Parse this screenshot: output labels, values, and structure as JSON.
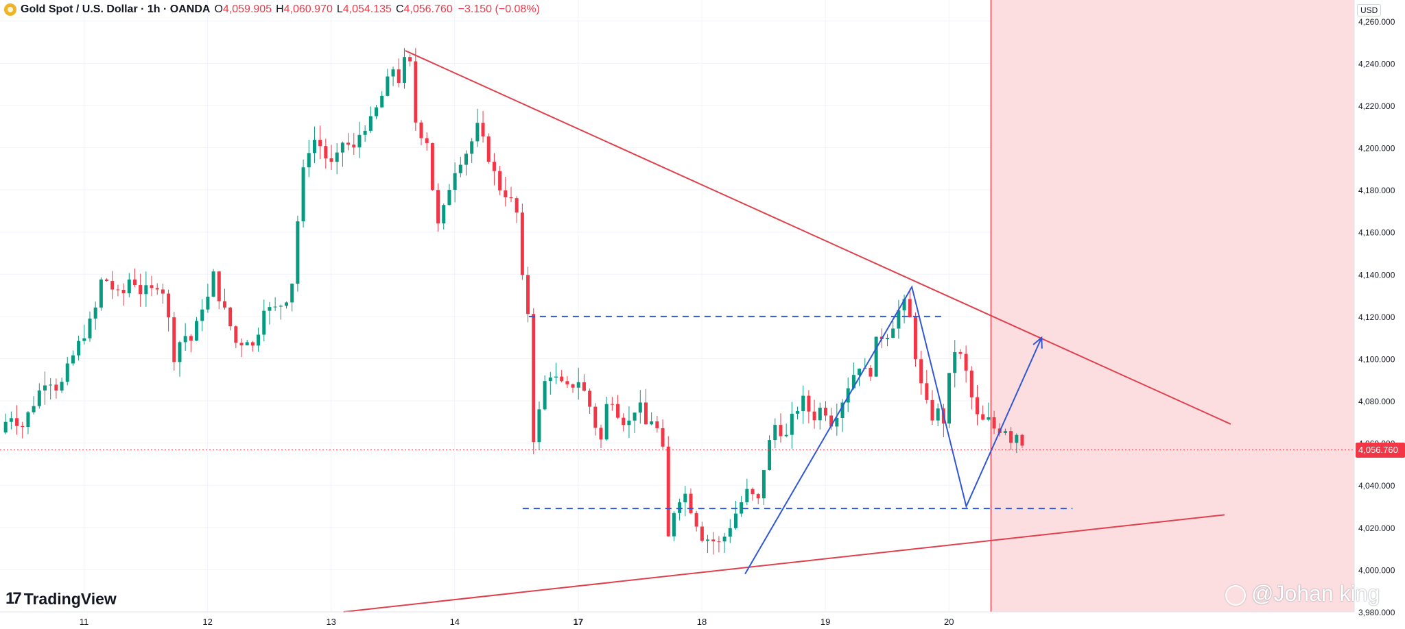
{
  "header": {
    "symbol_title": "Gold Spot / U.S. Dollar · 1h · OANDA",
    "open_label": "O",
    "open_value": "4,059.905",
    "high_label": "H",
    "high_value": "4,060.970",
    "low_label": "L",
    "low_value": "4,054.135",
    "close_label": "C",
    "close_value": "4,056.760",
    "change_value": "−3.150 (−0.08%)"
  },
  "currency_label": "USD",
  "current_price_label": "4,056.760",
  "logo_text": "TradingView",
  "watermark_text": "@Johan king",
  "colors": {
    "up": "#089981",
    "down": "#f23645",
    "trendline": "#e0404c",
    "pattern": "#2f56d6",
    "zone": "#fcdde0",
    "grid": "#f0f3fa"
  },
  "chart_data": {
    "type": "candlestick",
    "instrument": "Gold Spot / U.S. Dollar",
    "timeframe": "1h",
    "y_ticks": [
      "4,260.000",
      "4,240.000",
      "4,220.000",
      "4,200.000",
      "4,180.000",
      "4,160.000",
      "4,140.000",
      "4,120.000",
      "4,100.000",
      "4,080.000",
      "4,060.000",
      "4,040.000",
      "4,020.000",
      "4,000.000",
      "3,980.000"
    ],
    "x_ticks": [
      {
        "label": "11",
        "day": 0,
        "bold": false
      },
      {
        "label": "12",
        "day": 1,
        "bold": false
      },
      {
        "label": "13",
        "day": 2,
        "bold": false
      },
      {
        "label": "14",
        "day": 3,
        "bold": false
      },
      {
        "label": "17",
        "day": 4,
        "bold": true
      },
      {
        "label": "18",
        "day": 5,
        "bold": false
      },
      {
        "label": "19",
        "day": 6,
        "bold": false
      },
      {
        "label": "20",
        "day": 7,
        "bold": false
      }
    ],
    "ylim": [
      3980,
      4270
    ],
    "x_range_days": [
      -0.68,
      10.28
    ],
    "current_price": 4056.76,
    "price_path": [
      [
        -0.68,
        4065
      ],
      [
        -0.6,
        4074
      ],
      [
        -0.5,
        4068
      ],
      [
        -0.4,
        4080
      ],
      [
        -0.3,
        4092
      ],
      [
        -0.2,
        4085
      ],
      [
        -0.1,
        4100
      ],
      [
        0.0,
        4112
      ],
      [
        0.08,
        4120
      ],
      [
        0.15,
        4140
      ],
      [
        0.22,
        4134
      ],
      [
        0.3,
        4128
      ],
      [
        0.38,
        4140
      ],
      [
        0.45,
        4132
      ],
      [
        0.55,
        4132
      ],
      [
        0.62,
        4138
      ],
      [
        0.68,
        4120
      ],
      [
        0.72,
        4100
      ],
      [
        0.8,
        4112
      ],
      [
        0.88,
        4108
      ],
      [
        0.95,
        4125
      ],
      [
        1.0,
        4128
      ],
      [
        1.05,
        4140
      ],
      [
        1.1,
        4128
      ],
      [
        1.18,
        4116
      ],
      [
        1.25,
        4104
      ],
      [
        1.3,
        4112
      ],
      [
        1.38,
        4104
      ],
      [
        1.45,
        4126
      ],
      [
        1.52,
        4122
      ],
      [
        1.58,
        4125
      ],
      [
        1.65,
        4130
      ],
      [
        1.7,
        4140
      ],
      [
        1.74,
        4175
      ],
      [
        1.8,
        4198
      ],
      [
        1.88,
        4205
      ],
      [
        1.95,
        4196
      ],
      [
        2.02,
        4190
      ],
      [
        2.1,
        4204
      ],
      [
        2.18,
        4198
      ],
      [
        2.25,
        4210
      ],
      [
        2.32,
        4212
      ],
      [
        2.38,
        4220
      ],
      [
        2.45,
        4230
      ],
      [
        2.5,
        4238
      ],
      [
        2.55,
        4232
      ],
      [
        2.6,
        4242
      ],
      [
        2.65,
        4238
      ],
      [
        2.7,
        4200
      ],
      [
        2.75,
        4212
      ],
      [
        2.8,
        4195
      ],
      [
        2.85,
        4160
      ],
      [
        2.92,
        4172
      ],
      [
        2.98,
        4188
      ],
      [
        3.05,
        4195
      ],
      [
        3.12,
        4200
      ],
      [
        3.18,
        4210
      ],
      [
        3.22,
        4204
      ],
      [
        3.28,
        4195
      ],
      [
        3.35,
        4182
      ],
      [
        3.42,
        4178
      ],
      [
        3.5,
        4170
      ],
      [
        3.55,
        4135
      ],
      [
        3.6,
        4120
      ],
      [
        3.64,
        4060
      ],
      [
        3.7,
        4080
      ],
      [
        3.75,
        4095
      ],
      [
        3.82,
        4090
      ],
      [
        3.9,
        4085
      ],
      [
        4.0,
        4090
      ],
      [
        4.08,
        4080
      ],
      [
        4.12,
        4072
      ],
      [
        4.18,
        4060
      ],
      [
        4.25,
        4085
      ],
      [
        4.32,
        4075
      ],
      [
        4.4,
        4068
      ],
      [
        4.48,
        4080
      ],
      [
        4.55,
        4068
      ],
      [
        4.6,
        4072
      ],
      [
        4.68,
        4060
      ],
      [
        4.72,
        4012
      ],
      [
        4.78,
        4030
      ],
      [
        4.85,
        4038
      ],
      [
        4.92,
        4028
      ],
      [
        5.0,
        4016
      ],
      [
        5.08,
        4014
      ],
      [
        5.15,
        4012
      ],
      [
        5.22,
        4020
      ],
      [
        5.3,
        4030
      ],
      [
        5.38,
        4038
      ],
      [
        5.45,
        4030
      ],
      [
        5.52,
        4055
      ],
      [
        5.6,
        4070
      ],
      [
        5.68,
        4062
      ],
      [
        5.75,
        4075
      ],
      [
        5.82,
        4080
      ],
      [
        5.9,
        4072
      ],
      [
        5.98,
        4078
      ],
      [
        6.05,
        4070
      ],
      [
        6.12,
        4078
      ],
      [
        6.2,
        4090
      ],
      [
        6.28,
        4098
      ],
      [
        6.35,
        4090
      ],
      [
        6.42,
        4110
      ],
      [
        6.5,
        4112
      ],
      [
        6.58,
        4120
      ],
      [
        6.62,
        4128
      ],
      [
        6.68,
        4120
      ],
      [
        6.72,
        4105
      ],
      [
        6.78,
        4085
      ],
      [
        6.85,
        4072
      ],
      [
        6.92,
        4075
      ],
      [
        6.98,
        4068
      ],
      [
        7.0,
        4090
      ],
      [
        7.05,
        4105
      ],
      [
        7.12,
        4098
      ],
      [
        7.18,
        4082
      ],
      [
        7.25,
        4068
      ],
      [
        7.3,
        4072
      ],
      [
        7.38,
        4066
      ],
      [
        7.45,
        4068
      ],
      [
        7.5,
        4062
      ],
      [
        7.55,
        4065
      ],
      [
        7.6,
        4060
      ],
      [
        7.63,
        4057
      ]
    ],
    "annotations": {
      "upper_trendline": [
        [
          2.6,
          4246
        ],
        [
          9.28,
          4069
        ]
      ],
      "lower_trendline": [
        [
          2.1,
          3980
        ],
        [
          9.23,
          4026
        ]
      ],
      "range_top": {
        "y": 4120,
        "x": [
          3.6,
          6.95
        ]
      },
      "range_bottom": {
        "y": 4029,
        "x": [
          3.55,
          8.0
        ]
      },
      "zigzag": [
        [
          5.35,
          3998
        ],
        [
          6.7,
          4134
        ],
        [
          7.14,
          4030
        ],
        [
          7.75,
          4110
        ]
      ],
      "target_arrow": true,
      "shaded_zone_start_day": 7.34
    }
  }
}
